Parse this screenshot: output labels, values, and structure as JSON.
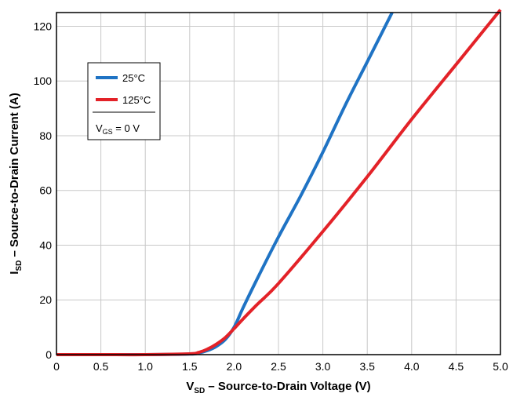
{
  "chart_data": {
    "type": "line",
    "xlabel": {
      "main": "V",
      "sub": "SD",
      "rest": " – Source-to-Drain Voltage (V)"
    },
    "ylabel": {
      "main": "I",
      "sub": "SD",
      "rest": " – Source-to-Drain Current (A)"
    },
    "xlim": [
      0,
      5.0
    ],
    "ylim": [
      0,
      125
    ],
    "x_ticks": [
      "0",
      "0.5",
      "1.0",
      "1.5",
      "2.0",
      "2.5",
      "3.0",
      "3.5",
      "4.0",
      "4.5",
      "5.0"
    ],
    "y_ticks": [
      "0",
      "20",
      "40",
      "60",
      "80",
      "100",
      "120"
    ],
    "grid": true,
    "legend_position": "upper-left",
    "legend_note": {
      "main": "V",
      "sub": "GS",
      "rest": " = 0 V"
    },
    "series": [
      {
        "name": "25°C",
        "color": "#1f73c4",
        "x": [
          0,
          0.5,
          1.0,
          1.5,
          1.6,
          1.7,
          1.8,
          1.9,
          2.0,
          2.1,
          2.25,
          2.5,
          2.75,
          3.0,
          3.25,
          3.5,
          3.78
        ],
        "y": [
          0,
          0,
          0,
          0.2,
          0.6,
          1.5,
          3.0,
          5.5,
          10,
          17,
          27,
          43,
          58,
          74,
          91,
          107,
          125
        ]
      },
      {
        "name": "125°C",
        "color": "#e32228",
        "x": [
          0,
          0.5,
          1.0,
          1.5,
          1.6,
          1.7,
          1.8,
          1.9,
          2.0,
          2.1,
          2.25,
          2.5,
          3.0,
          3.5,
          4.0,
          4.5,
          5.0
        ],
        "y": [
          0,
          0,
          0,
          0.3,
          0.8,
          2.0,
          3.8,
          6.2,
          9.5,
          13,
          18,
          26,
          45,
          65,
          86,
          106,
          126
        ]
      }
    ]
  }
}
